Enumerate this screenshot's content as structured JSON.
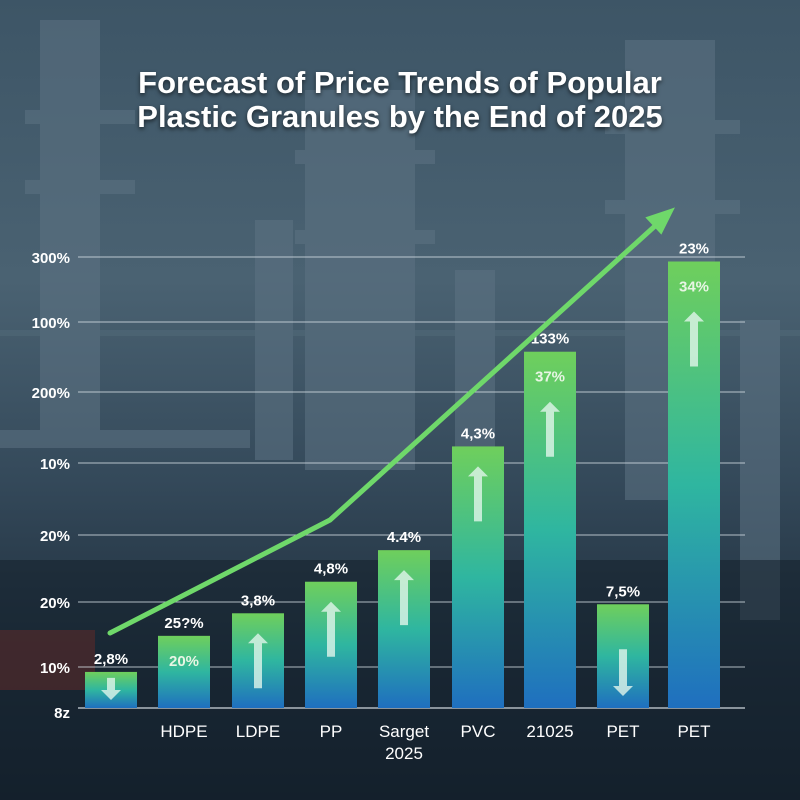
{
  "chart_data": {
    "type": "bar",
    "title": "Forecast of Price Trends of Popular Plastic Granules by the End of 2025",
    "title_lines": [
      "Forecast of Price Trends of Popular",
      "Plastic Granules by the End of 2025"
    ],
    "xlabel": "",
    "ylabel": "",
    "y_tick_labels": [
      "8z",
      "10%",
      "20%",
      "20%",
      "10%",
      "200%",
      "100%",
      "300%"
    ],
    "grid": true,
    "categories": [
      "",
      "HDPE",
      "LDPE",
      "PP",
      "Sarget 2025",
      "PVC",
      "21025",
      "PET",
      "PET"
    ],
    "bars": [
      {
        "category": "",
        "level": 0.08,
        "label": "2,8%",
        "inner_label": "",
        "arrow": "down"
      },
      {
        "category": "HDPE",
        "level": 0.16,
        "label": "25?%",
        "inner_label": "20%",
        "arrow": ""
      },
      {
        "category": "LDPE",
        "level": 0.21,
        "label": "3,8%",
        "inner_label": "",
        "arrow": "up"
      },
      {
        "category": "PP",
        "level": 0.28,
        "label": "4,8%",
        "inner_label": "",
        "arrow": "up"
      },
      {
        "category": "Sarget 2025",
        "level": 0.35,
        "label": "4.4%",
        "inner_label": "",
        "arrow": "up"
      },
      {
        "category": "PVC",
        "level": 0.58,
        "label": "4,3%",
        "inner_label": "",
        "arrow": "up"
      },
      {
        "category": "21025",
        "level": 0.79,
        "label": "133%",
        "inner_label": "37%",
        "arrow": "up"
      },
      {
        "category": "PET",
        "level": 0.23,
        "label": "7,5%",
        "inner_label": "",
        "arrow": "down"
      },
      {
        "category": "PET",
        "level": 0.99,
        "label": "23%",
        "inner_label": "34%",
        "arrow": "up"
      }
    ],
    "trend_line": {
      "direction": "up",
      "color": "#6fd86a"
    },
    "colors": {
      "bar_top": "#6fcf5c",
      "bar_bottom": "#1f6fbf",
      "text": "#ffffff",
      "grid": "#d8e0e6"
    }
  }
}
